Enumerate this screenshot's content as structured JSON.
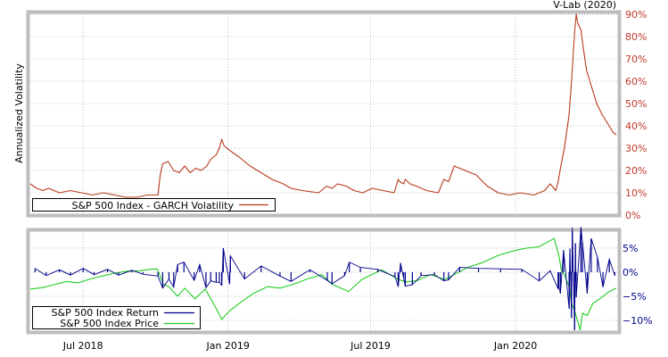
{
  "credit": "V-Lab (2020)",
  "colors": {
    "frame": "#bdbdbd",
    "volatility": "#b8391b",
    "return": "#00008b",
    "price": "#22cc22",
    "grid": "#b0b0b0",
    "right_axis_text": "#c0392b"
  },
  "chart_data": [
    {
      "type": "line",
      "title": "",
      "ylabel": "Annualized Volatility",
      "y_axis_side": "right",
      "ylim": [
        0,
        90
      ],
      "yticks": [
        0,
        10,
        20,
        30,
        40,
        50,
        60,
        70,
        80,
        90
      ],
      "ytick_labels": [
        "0%",
        "10%",
        "20%",
        "30%",
        "40%",
        "50%",
        "60%",
        "70%",
        "80%",
        "90%"
      ],
      "grid": true,
      "legend_position": "bottom-left",
      "series": [
        {
          "name": "S&P 500 Index - GARCH Volatility",
          "color": "#b8391b",
          "x": [
            "2018-04-25",
            "2018-05-03",
            "2018-05-11",
            "2018-05-18",
            "2018-06-01",
            "2018-06-15",
            "2018-06-29",
            "2018-07-13",
            "2018-07-27",
            "2018-08-10",
            "2018-08-24",
            "2018-09-07",
            "2018-09-21",
            "2018-10-04",
            "2018-10-07",
            "2018-10-10",
            "2018-10-17",
            "2018-10-24",
            "2018-10-31",
            "2018-11-07",
            "2018-11-14",
            "2018-11-21",
            "2018-11-28",
            "2018-12-05",
            "2018-12-10",
            "2018-12-17",
            "2018-12-21",
            "2018-12-24",
            "2018-12-27",
            "2019-01-03",
            "2019-01-15",
            "2019-01-29",
            "2019-02-12",
            "2019-02-26",
            "2019-03-12",
            "2019-03-22",
            "2019-04-05",
            "2019-04-26",
            "2019-05-06",
            "2019-05-13",
            "2019-05-20",
            "2019-05-31",
            "2019-06-10",
            "2019-06-21",
            "2019-07-03",
            "2019-07-17",
            "2019-07-31",
            "2019-08-05",
            "2019-08-07",
            "2019-08-12",
            "2019-08-14",
            "2019-08-20",
            "2019-08-28",
            "2019-09-10",
            "2019-09-25",
            "2019-10-02",
            "2019-10-08",
            "2019-10-15",
            "2019-10-29",
            "2019-11-12",
            "2019-11-26",
            "2019-12-10",
            "2019-12-24",
            "2020-01-07",
            "2020-01-24",
            "2020-01-31",
            "2020-02-07",
            "2020-02-14",
            "2020-02-21",
            "2020-02-24",
            "2020-02-27",
            "2020-03-03",
            "2020-03-09",
            "2020-03-12",
            "2020-03-16",
            "2020-03-18",
            "2020-03-20",
            "2020-03-24",
            "2020-03-27",
            "2020-03-31",
            "2020-04-06",
            "2020-04-13",
            "2020-04-20",
            "2020-04-27",
            "2020-05-04",
            "2020-05-08"
          ],
          "values": [
            14,
            12,
            11,
            12,
            10,
            11,
            10,
            9,
            10,
            9,
            8,
            8,
            9,
            9,
            18,
            23,
            24,
            20,
            19,
            22,
            19,
            21,
            20,
            22,
            25,
            27,
            30,
            34,
            31,
            29,
            26,
            22,
            19,
            16,
            14,
            12,
            11,
            10,
            13,
            12,
            14,
            13,
            11,
            10,
            12,
            11,
            10,
            16,
            15,
            14,
            16,
            14,
            13,
            11,
            10,
            16,
            15,
            22,
            20,
            18,
            13,
            10,
            9,
            10,
            9,
            10,
            11,
            14,
            11,
            15,
            21,
            30,
            45,
            60,
            82,
            90,
            86,
            83,
            75,
            65,
            58,
            50,
            45,
            41,
            37,
            36
          ]
        }
      ]
    },
    {
      "type": "line",
      "title": "",
      "y_axis_side": "right",
      "ylim": [
        -12,
        8
      ],
      "yticks": [
        5,
        0,
        -5,
        -10
      ],
      "ytick_labels": [
        "5%",
        "0%",
        "−5%",
        "−10%"
      ],
      "xticks": [
        "2018-07-01",
        "2019-01-01",
        "2019-07-01",
        "2020-01-01"
      ],
      "xtick_labels": [
        "Jul 2018",
        "Jan 2019",
        "Jul 2019",
        "Jan 2020"
      ],
      "grid": true,
      "legend_position": "bottom-left",
      "series": [
        {
          "name": "S&P 500 Index Return",
          "color": "#00008b",
          "x": [
            "2018-05-01",
            "2018-05-15",
            "2018-06-01",
            "2018-06-15",
            "2018-07-01",
            "2018-07-15",
            "2018-08-01",
            "2018-08-15",
            "2018-09-01",
            "2018-09-15",
            "2018-10-04",
            "2018-10-10",
            "2018-10-18",
            "2018-10-24",
            "2018-10-29",
            "2018-11-06",
            "2018-11-19",
            "2018-11-26",
            "2018-12-04",
            "2018-12-10",
            "2018-12-17",
            "2018-12-21",
            "2018-12-24",
            "2018-12-26",
            "2019-01-03",
            "2019-01-04",
            "2019-01-22",
            "2019-02-12",
            "2019-03-08",
            "2019-03-22",
            "2019-04-15",
            "2019-05-07",
            "2019-05-13",
            "2019-05-29",
            "2019-06-04",
            "2019-06-18",
            "2019-07-10",
            "2019-08-01",
            "2019-08-05",
            "2019-08-08",
            "2019-08-12",
            "2019-08-14",
            "2019-08-23",
            "2019-09-03",
            "2019-09-20",
            "2019-10-02",
            "2019-10-08",
            "2019-10-22",
            "2019-11-15",
            "2019-12-13",
            "2020-01-09",
            "2020-01-31",
            "2020-02-14",
            "2020-02-24",
            "2020-02-25",
            "2020-02-27",
            "2020-03-02",
            "2020-03-09",
            "2020-03-10",
            "2020-03-12",
            "2020-03-13",
            "2020-03-16",
            "2020-03-17",
            "2020-03-18",
            "2020-03-24",
            "2020-03-26",
            "2020-04-01",
            "2020-04-06",
            "2020-04-14",
            "2020-04-21",
            "2020-04-29",
            "2020-05-06"
          ],
          "values": [
            0.8,
            -0.7,
            0.5,
            -0.6,
            0.8,
            -0.5,
            0.6,
            -0.6,
            0.4,
            -0.4,
            -0.8,
            -3.3,
            -1.4,
            -3.1,
            1.6,
            2.1,
            -1.7,
            1.6,
            -3.2,
            -1.8,
            -2.1,
            -2.1,
            -2.7,
            5.0,
            -2.5,
            3.4,
            -1.4,
            1.3,
            -0.8,
            -1.9,
            0.5,
            -1.7,
            -2.4,
            -0.7,
            2.1,
            1.0,
            0.6,
            -0.9,
            -3.0,
            1.9,
            -1.2,
            -2.9,
            -2.6,
            -0.7,
            -0.5,
            -1.8,
            -1.6,
            1.0,
            0.8,
            0.7,
            0.6,
            -1.8,
            0.3,
            -3.4,
            -3.0,
            -4.4,
            4.6,
            -7.6,
            4.9,
            -9.5,
            9.3,
            -12.0,
            6.0,
            -5.2,
            9.4,
            6.2,
            -4.4,
            7.0,
            3.1,
            -3.1,
            2.7,
            -0.7
          ]
        },
        {
          "name": "S&P 500 Index Price",
          "color": "#22cc22",
          "x": [
            "2018-04-25",
            "2018-05-10",
            "2018-05-25",
            "2018-06-10",
            "2018-06-25",
            "2018-07-10",
            "2018-07-25",
            "2018-08-10",
            "2018-08-25",
            "2018-09-10",
            "2018-09-20",
            "2018-10-03",
            "2018-10-11",
            "2018-10-18",
            "2018-10-29",
            "2018-11-07",
            "2018-11-20",
            "2018-12-03",
            "2018-12-10",
            "2018-12-17",
            "2018-12-24",
            "2019-01-03",
            "2019-01-15",
            "2019-02-01",
            "2019-02-20",
            "2019-03-08",
            "2019-03-25",
            "2019-04-10",
            "2019-04-30",
            "2019-05-13",
            "2019-06-03",
            "2019-06-20",
            "2019-07-15",
            "2019-08-05",
            "2019-08-15",
            "2019-08-28",
            "2019-09-15",
            "2019-10-03",
            "2019-10-15",
            "2019-11-01",
            "2019-11-20",
            "2019-12-10",
            "2019-12-31",
            "2020-01-15",
            "2020-01-31",
            "2020-02-19",
            "2020-02-25",
            "2020-02-28",
            "2020-03-03",
            "2020-03-09",
            "2020-03-12",
            "2020-03-16",
            "2020-03-23",
            "2020-03-26",
            "2020-04-01",
            "2020-04-08",
            "2020-04-17",
            "2020-04-29",
            "2020-05-08"
          ],
          "values": [
            -3.5,
            -3.2,
            -2.6,
            -1.9,
            -2.2,
            -1.4,
            -0.8,
            -0.2,
            0.2,
            0.3,
            0.5,
            0.7,
            -2.5,
            -3.0,
            -5.0,
            -3.3,
            -5.5,
            -3.5,
            -5.5,
            -7.5,
            -9.8,
            -8.0,
            -6.5,
            -4.5,
            -3.0,
            -3.3,
            -2.5,
            -1.5,
            -0.5,
            -2.5,
            -4.0,
            -1.5,
            0.5,
            -1.5,
            -2.0,
            -1.8,
            -0.5,
            -1.5,
            -0.5,
            1.0,
            2.0,
            3.5,
            4.5,
            5.0,
            5.3,
            7.0,
            3.5,
            0.5,
            -0.5,
            -3.0,
            -6.5,
            -8.0,
            -12.0,
            -8.5,
            -9.0,
            -6.5,
            -5.5,
            -4.0,
            -3.3
          ]
        }
      ]
    }
  ]
}
